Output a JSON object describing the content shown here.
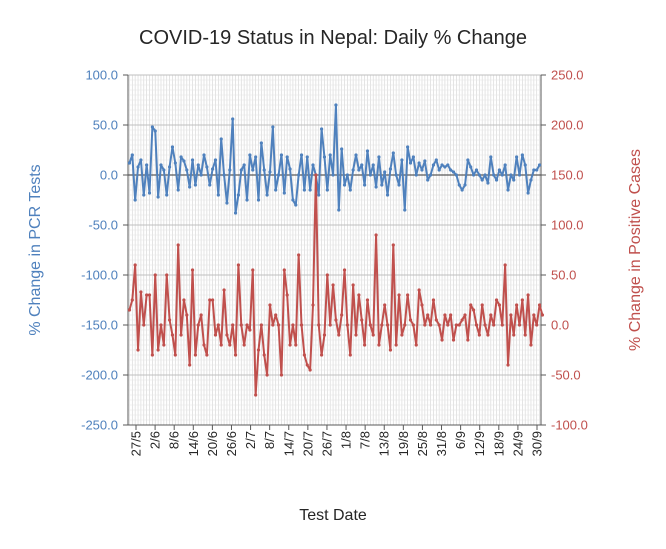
{
  "chart_data": {
    "type": "line",
    "title": "COVID-19 Status in Nepal: Daily % Change",
    "xlabel": "Test Date",
    "ylabel_left": "% Change in PCR Tests",
    "ylabel_right": "% Change in Positive Cases",
    "y_left_lim": [
      -250,
      100
    ],
    "y_right_lim": [
      -100,
      250
    ],
    "y_left_ticks": [
      "100.0",
      "50.0",
      "0.0",
      "-50.0",
      "-100.0",
      "-150.0",
      "-200.0",
      "-250.0"
    ],
    "y_right_ticks": [
      "250.0",
      "200.0",
      "150.0",
      "100.0",
      "50.0",
      "0.0",
      "-50.0",
      "-100.0"
    ],
    "x_ticks": [
      "27/5",
      "2/6",
      "8/6",
      "14/6",
      "20/6",
      "26/6",
      "2/7",
      "8/7",
      "14/7",
      "20/7",
      "26/7",
      "1/8",
      "7/8",
      "13/8",
      "19/8",
      "25/8",
      "31/8",
      "6/9",
      "12/9",
      "18/9",
      "24/9",
      "30/9"
    ],
    "grid": true,
    "legend": "none",
    "colors": {
      "left_series": "#4f81bd",
      "right_series": "#c0504d",
      "axis_left": "#4f81bd",
      "axis_right": "#c0504d"
    },
    "series": [
      {
        "axis": "left",
        "values": [
          12,
          20,
          -25,
          8,
          15,
          -20,
          10,
          -18,
          48,
          44,
          -22,
          10,
          5,
          -20,
          8,
          28,
          12,
          -15,
          18,
          14,
          5,
          -12,
          15,
          -10,
          10,
          0,
          20,
          8,
          -10,
          6,
          15,
          -20,
          36,
          0,
          -28,
          5,
          56,
          -38,
          -20,
          5,
          10,
          -25,
          20,
          5,
          18,
          -25,
          32,
          5,
          -20,
          3,
          48,
          -15,
          0,
          20,
          -18,
          18,
          6,
          -25,
          -30,
          0,
          20,
          -15,
          18,
          -15,
          10,
          0,
          -20,
          46,
          18,
          -15,
          20,
          0,
          70,
          -35,
          26,
          -10,
          0,
          -15,
          5,
          20,
          5,
          10,
          -10,
          24,
          0,
          10,
          -12,
          18,
          -10,
          3,
          -20,
          6,
          22,
          0,
          -10,
          15,
          -35,
          28,
          12,
          18,
          0,
          12,
          5,
          14,
          -5,
          0,
          10,
          15,
          5,
          10,
          8,
          10,
          5,
          3,
          0,
          -10,
          -15,
          -10,
          15,
          8,
          0,
          5,
          0,
          -5,
          0,
          -8,
          18,
          0,
          -5,
          5,
          0,
          10,
          -15,
          0,
          -5,
          18,
          0,
          20,
          10,
          -18,
          -5,
          5,
          5,
          10
        ]
      },
      {
        "axis": "right",
        "values": [
          15,
          25,
          60,
          -25,
          33,
          0,
          30,
          30,
          -30,
          50,
          -25,
          0,
          -20,
          50,
          5,
          -10,
          -30,
          80,
          -10,
          25,
          10,
          -40,
          55,
          -30,
          0,
          10,
          -20,
          -30,
          25,
          25,
          -10,
          0,
          -20,
          35,
          -10,
          -20,
          0,
          -30,
          60,
          0,
          -20,
          0,
          -5,
          55,
          -70,
          -25,
          0,
          -30,
          -50,
          20,
          0,
          10,
          0,
          -50,
          55,
          30,
          -20,
          0,
          -20,
          70,
          0,
          -30,
          -40,
          -45,
          20,
          150,
          0,
          -30,
          -10,
          50,
          0,
          40,
          5,
          -10,
          10,
          55,
          0,
          -30,
          40,
          -10,
          30,
          5,
          -20,
          25,
          0,
          -10,
          90,
          -20,
          0,
          20,
          0,
          -25,
          80,
          -20,
          30,
          -10,
          0,
          30,
          5,
          0,
          -20,
          35,
          20,
          0,
          10,
          0,
          25,
          5,
          0,
          -15,
          10,
          0,
          10,
          -15,
          0,
          0,
          5,
          10,
          -15,
          20,
          15,
          0,
          -10,
          20,
          0,
          -10,
          10,
          0,
          25,
          20,
          0,
          60,
          -40,
          10,
          -10,
          20,
          0,
          25,
          -10,
          30,
          -20,
          10,
          0,
          20,
          10
        ]
      }
    ]
  }
}
